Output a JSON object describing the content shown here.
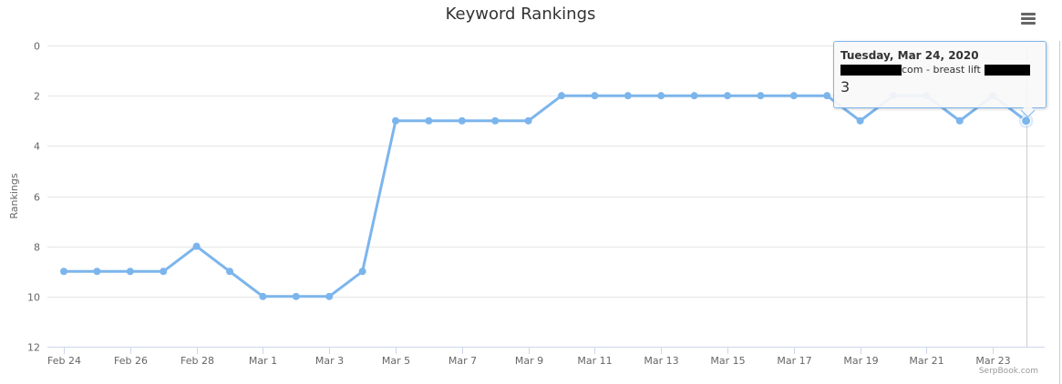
{
  "chart_data": {
    "type": "line",
    "title": "Keyword Rankings",
    "xlabel": "",
    "ylabel": "Rankings",
    "ylim": [
      0,
      12
    ],
    "y_reversed": true,
    "y_ticks": [
      0,
      2,
      4,
      6,
      8,
      10,
      12
    ],
    "x_tick_labels": [
      "Feb 24",
      "Feb 26",
      "Feb 28",
      "Mar 1",
      "Mar 3",
      "Mar 5",
      "Mar 7",
      "Mar 9",
      "Mar 11",
      "Mar 13",
      "Mar 15",
      "Mar 17",
      "Mar 19",
      "Mar 21",
      "Mar 23"
    ],
    "grid": true,
    "series": [
      {
        "color": "#7cb5ec",
        "x": [
          "2020-02-24",
          "2020-02-25",
          "2020-02-26",
          "2020-02-27",
          "2020-02-28",
          "2020-02-29",
          "2020-03-01",
          "2020-03-02",
          "2020-03-03",
          "2020-03-04",
          "2020-03-05",
          "2020-03-06",
          "2020-03-07",
          "2020-03-08",
          "2020-03-09",
          "2020-03-10",
          "2020-03-11",
          "2020-03-12",
          "2020-03-13",
          "2020-03-14",
          "2020-03-15",
          "2020-03-16",
          "2020-03-17",
          "2020-03-18",
          "2020-03-19",
          "2020-03-20",
          "2020-03-21",
          "2020-03-22",
          "2020-03-23",
          "2020-03-24"
        ],
        "values": [
          9,
          9,
          9,
          9,
          8,
          9,
          10,
          10,
          10,
          9,
          3,
          3,
          3,
          3,
          3,
          2,
          2,
          2,
          2,
          2,
          2,
          2,
          2,
          2,
          3,
          2,
          2,
          3,
          2,
          3
        ]
      }
    ],
    "tooltip": {
      "date": "Tuesday, Mar 24, 2020",
      "series_text": "com - breast lift",
      "value": "3"
    },
    "credits": "SerpBook.com"
  },
  "icons": {
    "menu": "hamburger-menu-icon"
  }
}
